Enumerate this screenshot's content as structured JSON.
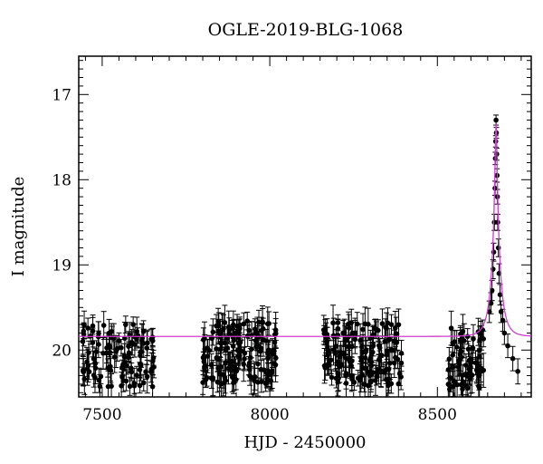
{
  "chart_data": {
    "type": "scatter",
    "title": "OGLE-2019-BLG-1068",
    "xlabel": "HJD - 2450000",
    "ylabel": "I magnitude",
    "xlim": [
      7430,
      8780
    ],
    "ylim": [
      16.55,
      20.55
    ],
    "y_inverted": true,
    "x_ticks": [
      7500,
      8000,
      8500
    ],
    "y_ticks": [
      17,
      18,
      19,
      20
    ],
    "grid": false,
    "colors": {
      "points": "#000000",
      "errorbars": "#000000",
      "model": "#d03bd0"
    },
    "series": [
      {
        "kind": "points_with_errorbars",
        "seasons": [
          {
            "x_range": [
              7440,
              7655
            ],
            "baseline": 19.88,
            "scatter": 0.55,
            "err": 0.14,
            "count": 105
          },
          {
            "x_range": [
              7800,
              8020
            ],
            "baseline": 19.85,
            "scatter": 0.55,
            "err": 0.15,
            "count": 150
          },
          {
            "x_range": [
              8160,
              8395
            ],
            "baseline": 19.87,
            "scatter": 0.55,
            "err": 0.15,
            "count": 150
          },
          {
            "x_range": [
              8530,
              8640
            ],
            "baseline": 19.92,
            "scatter": 0.55,
            "err": 0.15,
            "count": 70
          }
        ],
        "peak_points": [
          [
            8655,
            19.55
          ],
          [
            8660,
            19.45
          ],
          [
            8663,
            19.3
          ],
          [
            8666,
            19.05
          ],
          [
            8668,
            18.85
          ],
          [
            8670,
            18.5
          ],
          [
            8672,
            18.1
          ],
          [
            8673,
            17.75
          ],
          [
            8674,
            17.55
          ],
          [
            8675,
            17.3
          ],
          [
            8676,
            17.45
          ],
          [
            8677,
            17.7
          ],
          [
            8678,
            17.95
          ],
          [
            8679,
            18.2
          ],
          [
            8680,
            18.5
          ],
          [
            8682,
            18.8
          ],
          [
            8684,
            19.1
          ],
          [
            8687,
            19.35
          ],
          [
            8690,
            19.55
          ],
          [
            8695,
            19.65
          ],
          [
            8700,
            19.8
          ],
          [
            8710,
            19.95
          ],
          [
            8725,
            20.1
          ],
          [
            8740,
            20.25
          ]
        ]
      },
      {
        "kind": "model_curve",
        "baseline": 19.84,
        "t0": 8675,
        "peak_mag": 17.35,
        "tE": 25,
        "x_range": [
          7430,
          8780
        ]
      }
    ]
  }
}
